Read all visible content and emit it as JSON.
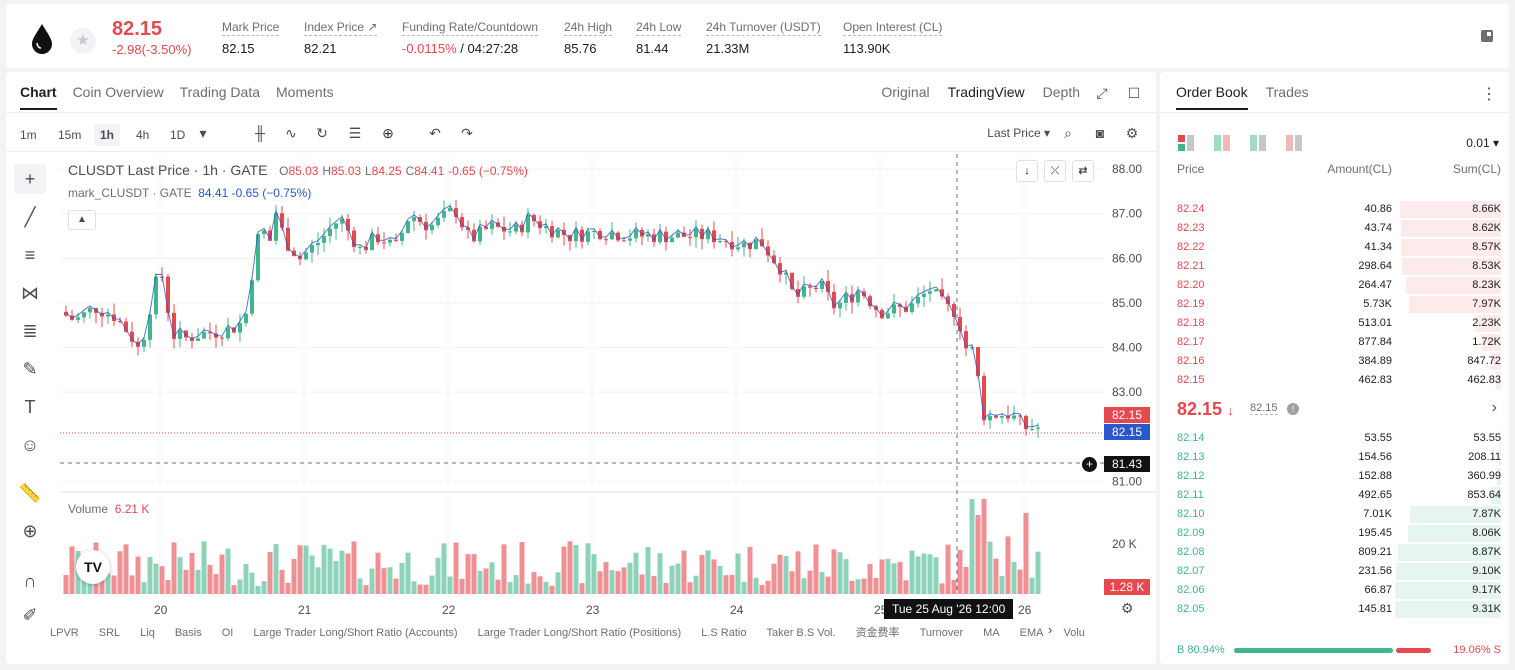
{
  "ticker": {
    "price": "82.15",
    "change": "-2.98(-3.50%)",
    "stats": [
      {
        "label": "Mark Price",
        "value": "82.15"
      },
      {
        "label": "Index Price ↗",
        "value": "82.21"
      },
      {
        "label": "Funding Rate/Countdown",
        "value_red": "-0.0115%",
        "value": " / 04:27:28"
      },
      {
        "label": "24h High",
        "value": "85.76"
      },
      {
        "label": "24h Low",
        "value": "81.44"
      },
      {
        "label": "24h Turnover (USDT)",
        "value": "21.33M"
      },
      {
        "label": "Open Interest (CL)",
        "value": "113.90K"
      }
    ]
  },
  "chart_tabs": [
    "Chart",
    "Coin Overview",
    "Trading Data",
    "Moments"
  ],
  "chart_views": [
    "Original",
    "TradingView",
    "Depth"
  ],
  "timeframes": [
    "1m",
    "15m",
    "1h",
    "4h",
    "1D"
  ],
  "last_price_select": "Last Price",
  "legend": {
    "symbol": "CLUSDT Last Price · 1h · GATE",
    "o_label": "O",
    "o": "85.03",
    "h_label": "H",
    "h": "85.03",
    "l_label": "L",
    "l": "84.25",
    "c_label": "C",
    "c": "84.41",
    "chg": "-0.65 (−0.75%)",
    "mark_name": "mark_CLUSDT · GATE",
    "mark_vals": "84.41 -0.65 (−0.75%)"
  },
  "volume_legend": {
    "label": "Volume",
    "value": "6.21 K"
  },
  "price_labels": {
    "last": "82.15",
    "mark": "82.15",
    "cursor": "81.43",
    "volume": "1.28 K"
  },
  "time_tooltip": "Tue 25 Aug '26   12:00",
  "bottom_indicators": [
    "LPVR",
    "SRL",
    "Liq",
    "Basis",
    "OI",
    "Large Trader Long/Short Ratio (Accounts)",
    "Large Trader Long/Short Ratio (Positions)",
    "L.S Ratio",
    "Taker B.S Vol.",
    "资金费率",
    "Turnover",
    "MA",
    "EMA",
    "Volu"
  ],
  "order_book": {
    "tabs": [
      "Order Book",
      "Trades"
    ],
    "precision": "0.01",
    "headers": {
      "price": "Price",
      "amount": "Amount(CL)",
      "sum": "Sum(CL)"
    },
    "asks": [
      {
        "price": "82.24",
        "amount": "40.86",
        "sum": "8.66K",
        "depth": 0.95
      },
      {
        "price": "82.23",
        "amount": "43.74",
        "sum": "8.62K",
        "depth": 0.945
      },
      {
        "price": "82.22",
        "amount": "41.34",
        "sum": "8.57K",
        "depth": 0.94
      },
      {
        "price": "82.21",
        "amount": "298.64",
        "sum": "8.53K",
        "depth": 0.935
      },
      {
        "price": "82.20",
        "amount": "264.47",
        "sum": "8.23K",
        "depth": 0.9
      },
      {
        "price": "82.19",
        "amount": "5.73K",
        "sum": "7.97K",
        "depth": 0.87
      },
      {
        "price": "82.18",
        "amount": "513.01",
        "sum": "2.23K",
        "depth": 0.25
      },
      {
        "price": "82.17",
        "amount": "877.84",
        "sum": "1.72K",
        "depth": 0.19
      },
      {
        "price": "82.16",
        "amount": "384.89",
        "sum": "847.72",
        "depth": 0.09
      },
      {
        "price": "82.15",
        "amount": "462.83",
        "sum": "462.83",
        "depth": 0.05
      }
    ],
    "mid_price": "82.15",
    "mid_mark": "82.15",
    "bids": [
      {
        "price": "82.14",
        "amount": "53.55",
        "sum": "53.55",
        "depth": 0.01
      },
      {
        "price": "82.13",
        "amount": "154.56",
        "sum": "208.11",
        "depth": 0.02
      },
      {
        "price": "82.12",
        "amount": "152.88",
        "sum": "360.99",
        "depth": 0.04
      },
      {
        "price": "82.11",
        "amount": "492.65",
        "sum": "853.64",
        "depth": 0.09
      },
      {
        "price": "82.10",
        "amount": "7.01K",
        "sum": "7.87K",
        "depth": 0.86
      },
      {
        "price": "82.09",
        "amount": "195.45",
        "sum": "8.06K",
        "depth": 0.88
      },
      {
        "price": "82.08",
        "amount": "809.21",
        "sum": "8.87K",
        "depth": 0.97
      },
      {
        "price": "82.07",
        "amount": "231.56",
        "sum": "9.10K",
        "depth": 0.99
      },
      {
        "price": "82.06",
        "amount": "66.87",
        "sum": "9.17K",
        "depth": 1.0
      },
      {
        "price": "82.05",
        "amount": "145.81",
        "sum": "9.31K",
        "depth": 1.0
      }
    ],
    "buy_ratio": "B 80.94%",
    "sell_ratio": "19.06% S",
    "buy_fraction": 0.8094
  },
  "chart_data": {
    "type": "candlestick",
    "y_ticks": [
      "88.00",
      "87.00",
      "86.00",
      "85.00",
      "84.00",
      "83.00",
      "81.00"
    ],
    "vol_ticks": [
      "20 K"
    ],
    "x_ticks": [
      "20",
      "21",
      "22",
      "23",
      "24",
      "25",
      "26"
    ],
    "ylim": [
      80.85,
      88.25
    ],
    "colors": {
      "up": "#3fb68b",
      "down": "#e5484d"
    }
  }
}
